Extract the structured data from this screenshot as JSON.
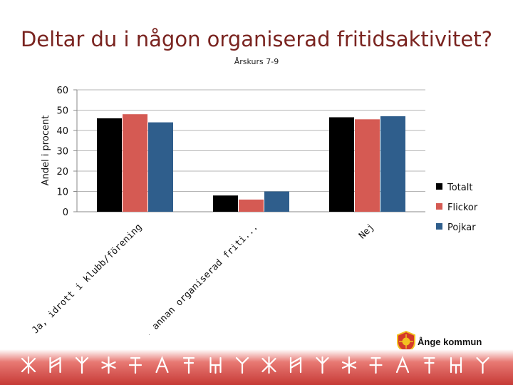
{
  "title": "Deltar du i någon organiserad fritidsaktivitet?",
  "subtitle": "Årskurs 7-9",
  "logo_text": "Ånge kommun",
  "colors": {
    "title": "#7a2420",
    "totalt": "#000000",
    "flickor": "#d55a53",
    "pojkar": "#2f5e8c",
    "footer": "#c63a36"
  },
  "chart_data": {
    "type": "bar",
    "categories": [
      "Ja, idrott i klubb/förening",
      "Ja, annan organiserad friti...",
      "Nej"
    ],
    "series": [
      {
        "name": "Totalt",
        "values": [
          46,
          8,
          46.5
        ]
      },
      {
        "name": "Flickor",
        "values": [
          48,
          6,
          45.5
        ]
      },
      {
        "name": "Pojkar",
        "values": [
          44,
          10,
          47
        ]
      }
    ],
    "ylabel": "Andel i procent",
    "xlabel": "",
    "ylim": [
      0,
      60
    ],
    "yticks": [
      0,
      10,
      20,
      30,
      40,
      50,
      60
    ],
    "grid": true,
    "legend": "right"
  }
}
